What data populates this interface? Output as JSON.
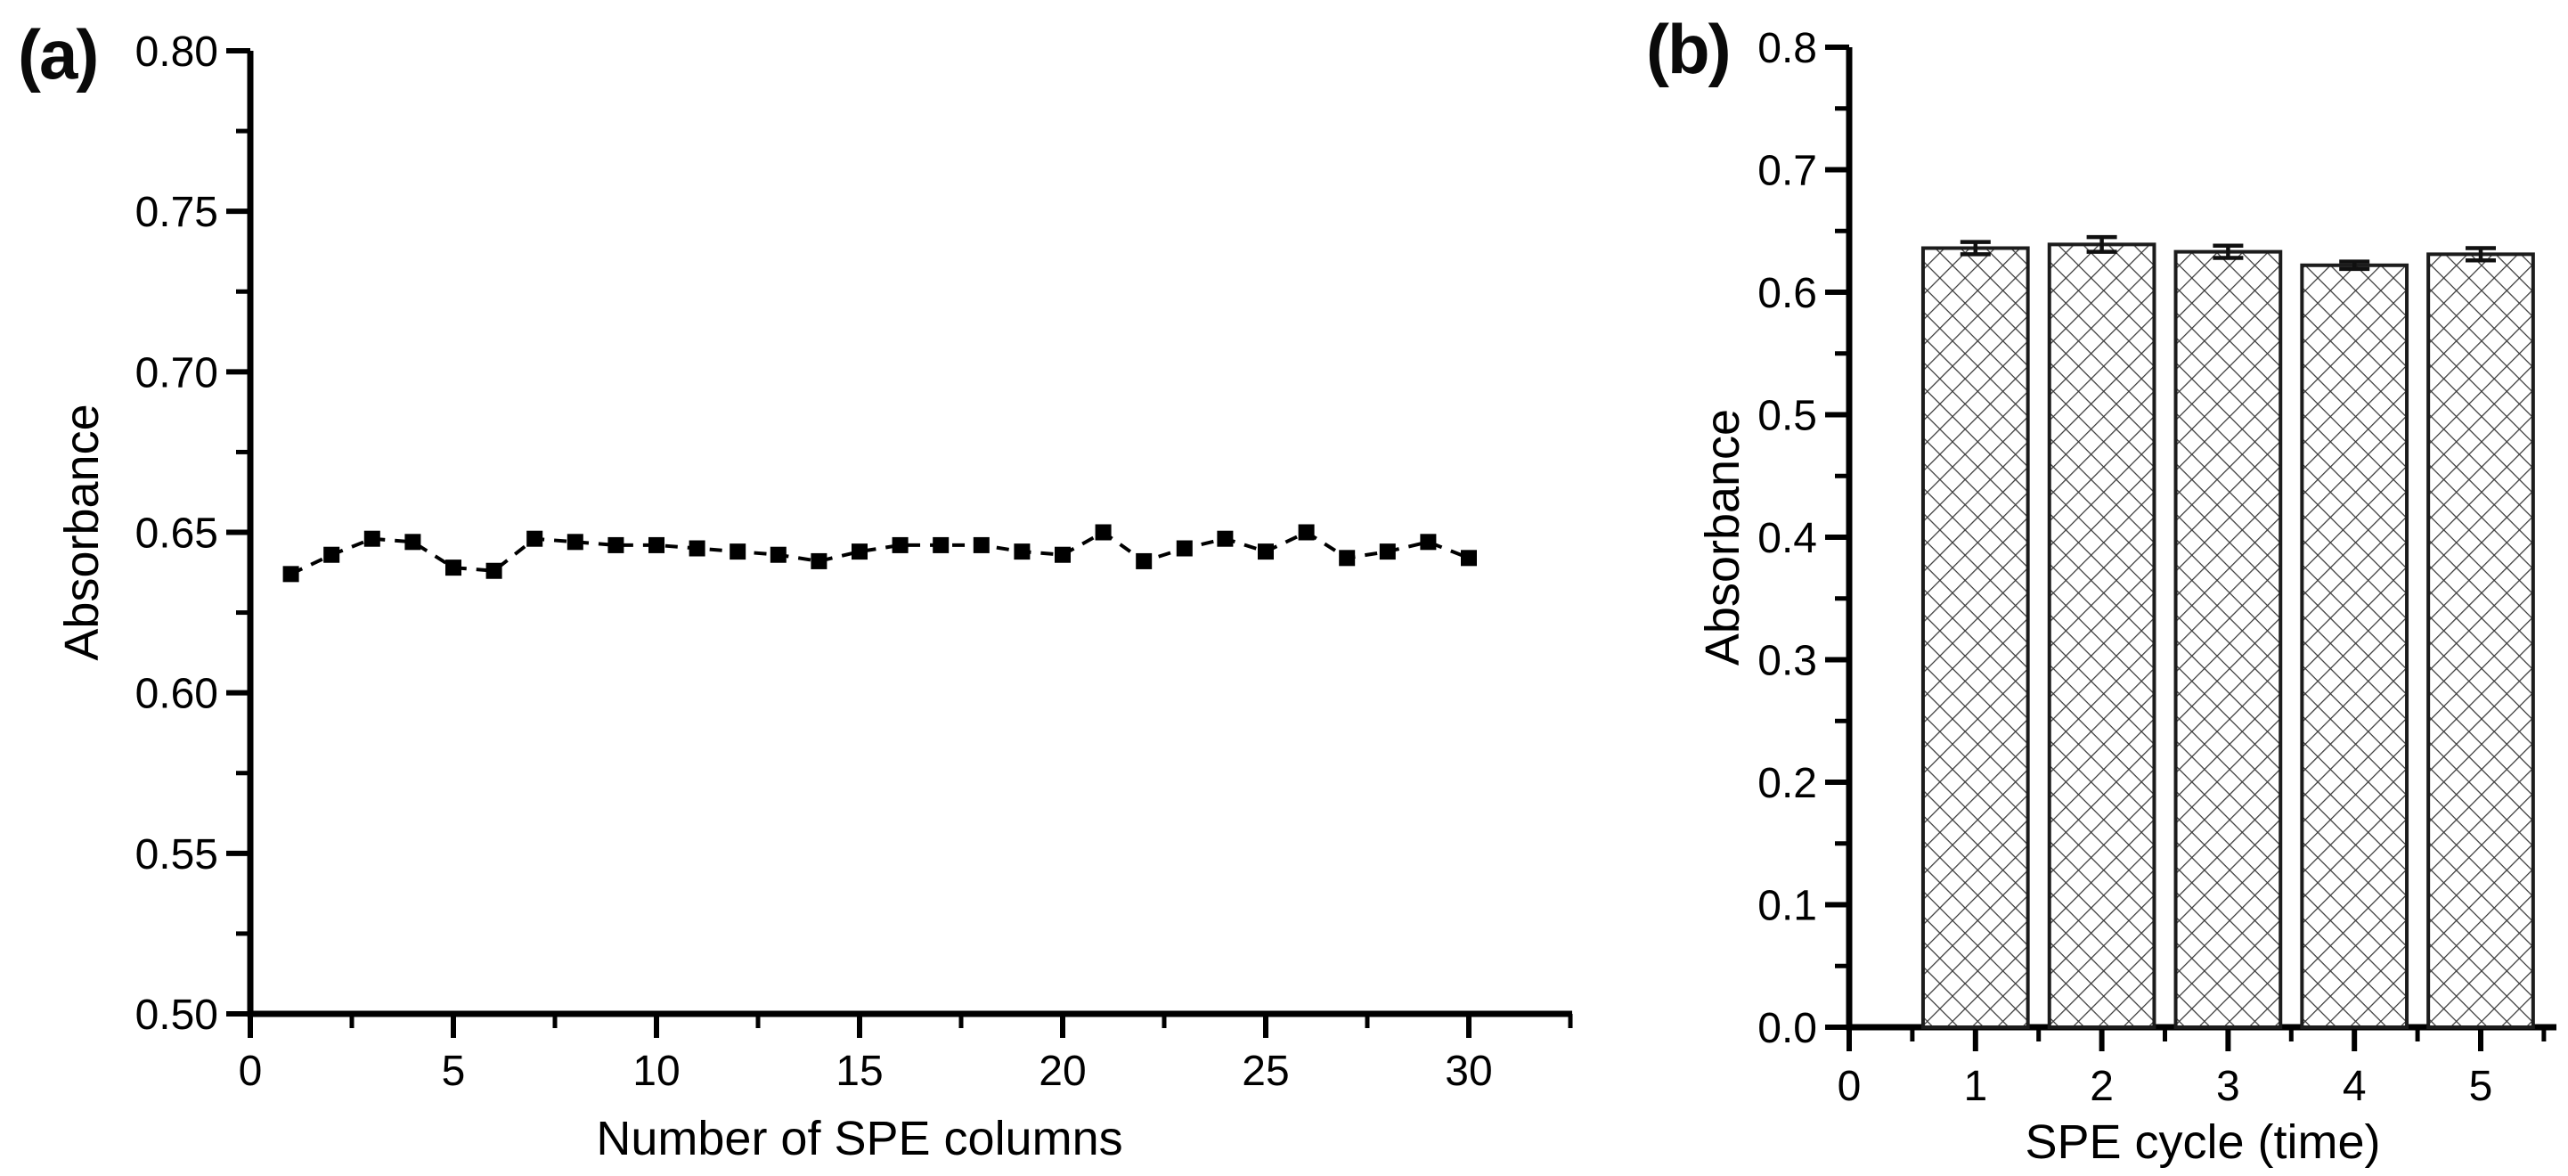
{
  "figure": {
    "background": "#ffffff",
    "ink": "#000000",
    "hatch_color": "#3a3a3a"
  },
  "panels": [
    {
      "tag": "(a)"
    },
    {
      "tag": "(b)"
    }
  ],
  "chart_data": [
    {
      "type": "line",
      "panel": "a",
      "title": "",
      "xlabel": "Number of SPE columns",
      "ylabel": "Absorbance",
      "xlim": [
        0,
        32.5
      ],
      "ylim": [
        0.5,
        0.8
      ],
      "x_major_ticks": [
        0,
        5,
        10,
        15,
        20,
        25,
        30
      ],
      "x_tick_labels": [
        "0",
        "5",
        "10",
        "15",
        "20",
        "25",
        "30"
      ],
      "x_minor_ticks": [
        2.5,
        7.5,
        12.5,
        17.5,
        22.5,
        27.5,
        32.5
      ],
      "y_major_ticks": [
        0.5,
        0.55,
        0.6,
        0.65,
        0.7,
        0.75,
        0.8
      ],
      "y_tick_labels": [
        "0.50",
        "0.55",
        "0.60",
        "0.65",
        "0.70",
        "0.75",
        "0.80"
      ],
      "y_minor_ticks": [
        0.525,
        0.575,
        0.625,
        0.675,
        0.725,
        0.775
      ],
      "grid": false,
      "legend": "none",
      "marker": "filled-square",
      "line_style": "dashed",
      "x": [
        1,
        2,
        3,
        4,
        5,
        6,
        7,
        8,
        9,
        10,
        11,
        12,
        13,
        14,
        15,
        16,
        17,
        18,
        19,
        20,
        21,
        22,
        23,
        24,
        25,
        26,
        27,
        28,
        29,
        30
      ],
      "y": [
        0.637,
        0.643,
        0.648,
        0.647,
        0.639,
        0.638,
        0.648,
        0.647,
        0.646,
        0.646,
        0.645,
        0.644,
        0.643,
        0.641,
        0.644,
        0.646,
        0.646,
        0.646,
        0.644,
        0.643,
        0.65,
        0.641,
        0.645,
        0.648,
        0.644,
        0.65,
        0.642,
        0.644,
        0.647,
        0.642
      ]
    },
    {
      "type": "bar",
      "panel": "b",
      "title": "",
      "xlabel": "SPE cycle (time)",
      "ylabel": "Absorbance",
      "xlim": [
        0,
        5.6
      ],
      "ylim": [
        0.0,
        0.8
      ],
      "x_major_ticks": [
        0,
        1,
        2,
        3,
        4,
        5
      ],
      "x_tick_labels": [
        "0",
        "1",
        "2",
        "3",
        "4",
        "5"
      ],
      "x_minor_ticks": [
        0.5,
        1.5,
        2.5,
        3.5,
        4.5,
        5.5
      ],
      "y_major_ticks": [
        0.0,
        0.1,
        0.2,
        0.3,
        0.4,
        0.5,
        0.6,
        0.7,
        0.8
      ],
      "y_tick_labels": [
        "0.0",
        "0.1",
        "0.2",
        "0.3",
        "0.4",
        "0.5",
        "0.6",
        "0.7",
        "0.8"
      ],
      "y_minor_ticks": [
        0.05,
        0.15,
        0.25,
        0.35,
        0.45,
        0.55,
        0.65,
        0.75
      ],
      "grid": false,
      "legend": "none",
      "bar_fill": "crosshatch",
      "bar_width_units": 0.83,
      "categories": [
        1,
        2,
        3,
        4,
        5
      ],
      "values": [
        0.636,
        0.639,
        0.633,
        0.622,
        0.631
      ],
      "errors": [
        0.005,
        0.006,
        0.005,
        0.003,
        0.005
      ]
    }
  ]
}
